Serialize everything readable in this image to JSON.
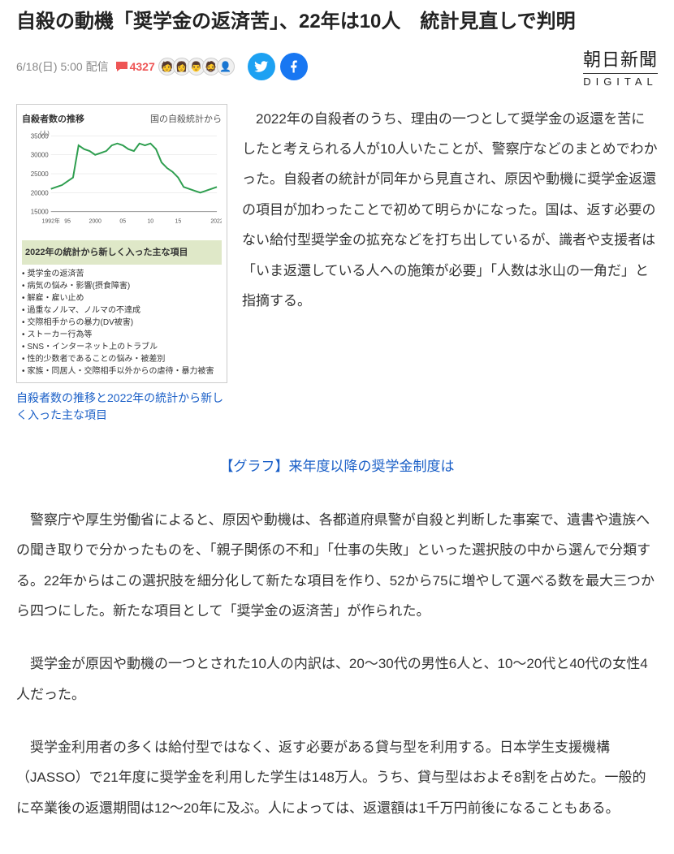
{
  "headline": "自殺の動機「奨学金の返済苦」、22年は10人　統計見直しで判明",
  "meta": {
    "date": "6/18(日) 5:00 配信",
    "comment_count": "4327"
  },
  "source": {
    "brand": "朝日新聞",
    "sub": "DIGITAL"
  },
  "figure": {
    "caption": "自殺者数の推移と2022年の統計から新しく入った主な項目",
    "chart": {
      "title": "自殺者数の推移",
      "title_right": "国の自殺統計から",
      "unit": "(人)",
      "xticks": [
        "1992年",
        "95",
        "2000",
        "05",
        "10",
        "15",
        "2022"
      ],
      "ylim": [
        15000,
        35000
      ],
      "ytick_step": 5000,
      "yticks": [
        "15000",
        "20000",
        "25000",
        "30000",
        "35000"
      ],
      "line_color": "#2e9e4f",
      "grid_color": "#dddddd",
      "values": [
        21000,
        21500,
        22000,
        23000,
        24000,
        32500,
        31500,
        31000,
        30000,
        30500,
        31000,
        32500,
        33000,
        32500,
        31500,
        31000,
        33000,
        32500,
        33000,
        31500,
        28000,
        26500,
        25500,
        24000,
        21500,
        21000,
        20500,
        20000,
        20500,
        21000,
        21500
      ],
      "new_items_header": "2022年の統計から新しく入った主な項目",
      "new_items": [
        "奨学金の返済苦",
        "病気の悩み・影響(摂食障害)",
        "解雇・雇い止め",
        "過重なノルマ、ノルマの不達成",
        "交際相手からの暴力(DV被害)",
        "ストーカー行為等",
        "SNS・インターネット上のトラブル",
        "性的少数者であることの悩み・被差別",
        "家族・同居人・交際相手以外からの虐待・暴力被害"
      ]
    }
  },
  "lead": "　2022年の自殺者のうち、理由の一つとして奨学金の返還を苦にしたと考えられる人が10人いたことが、警察庁などのまとめでわかった。自殺者の統計が同年から見直され、原因や動機に奨学金返還の項目が加わったことで初めて明らかになった。国は、返す必要のない給付型奨学金の拡充などを打ち出しているが、識者や支援者は「いま返還している人への施策が必要」「人数は氷山の一角だ」と指摘する。",
  "related_link": "【グラフ】来年度以降の奨学金制度は",
  "paragraphs": [
    "警察庁や厚生労働省によると、原因や動機は、各都道府県警が自殺と判断した事案で、遺書や遺族への聞き取りで分かったものを、「親子関係の不和」「仕事の失敗」といった選択肢の中から選んで分類する。22年からはこの選択肢を細分化して新たな項目を作り、52から75に増やして選べる数を最大三つから四つにした。新たな項目として「奨学金の返済苦」が作られた。",
    "奨学金が原因や動機の一つとされた10人の内訳は、20～30代の男性6人と、10～20代と40代の女性4人だった。",
    "奨学金利用者の多くは給付型ではなく、返す必要がある貸与型を利用する。日本学生支援機構（JASSO）で21年度に奨学金を利用した学生は148万人。うち、貸与型はおよそ8割を占めた。一般的に卒業後の返還期間は12～20年に及ぶ。人によっては、返還額は1千万円前後になることもある。"
  ],
  "colors": {
    "link": "#1a5fc7",
    "comment": "#e55",
    "twitter": "#1da1f2",
    "facebook": "#1877f2"
  }
}
